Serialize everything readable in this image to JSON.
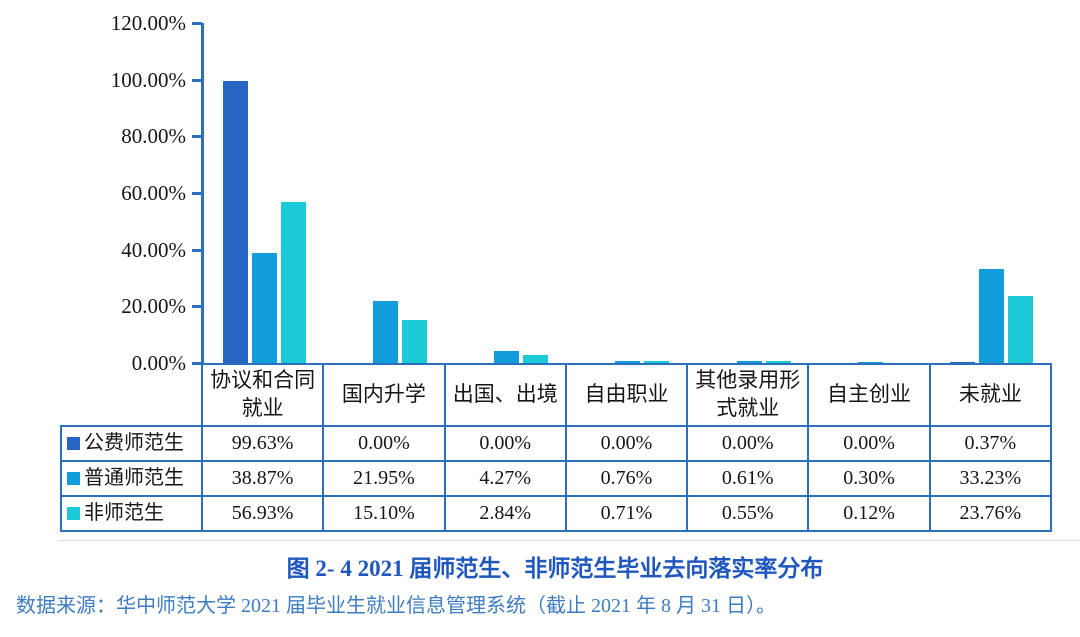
{
  "chart_data": {
    "type": "bar",
    "title": "图 2- 4  2021 届师范生、非师范生毕业去向落实率分布",
    "categories": [
      "协议和合同就业",
      "国内升学",
      "出国、出境",
      "自由职业",
      "其他录用形式就业",
      "自主创业",
      "未就业"
    ],
    "series": [
      {
        "name": "公费师范生",
        "color": "#2765C3",
        "values": [
          99.63,
          0.0,
          0.0,
          0.0,
          0.0,
          0.0,
          0.37
        ]
      },
      {
        "name": "普通师范生",
        "color": "#119CDC",
        "values": [
          38.87,
          21.95,
          4.27,
          0.76,
          0.61,
          0.3,
          33.23
        ]
      },
      {
        "name": "非师范生",
        "color": "#1BCAD6",
        "values": [
          56.93,
          15.1,
          2.84,
          0.71,
          0.55,
          0.12,
          23.76
        ]
      }
    ],
    "ylim": [
      0,
      120
    ],
    "yticks": [
      "120.00%",
      "100.00%",
      "80.00%",
      "60.00%",
      "40.00%",
      "20.00%",
      "0.00%"
    ],
    "grid": false,
    "legend_position": "table row labels",
    "axis_color": "#2B6FBE"
  },
  "table": {
    "rows": [
      {
        "label": "公费师范生",
        "values": [
          "99.63%",
          "0.00%",
          "0.00%",
          "0.00%",
          "0.00%",
          "0.00%",
          "0.37%"
        ]
      },
      {
        "label": "普通师范生",
        "values": [
          "38.87%",
          "21.95%",
          "4.27%",
          "0.76%",
          "0.61%",
          "0.30%",
          "33.23%"
        ]
      },
      {
        "label": "非师范生",
        "values": [
          "56.93%",
          "15.10%",
          "2.84%",
          "0.71%",
          "0.55%",
          "0.12%",
          "23.76%"
        ]
      }
    ]
  },
  "source_note": "数据来源：华中师范大学 2021 届毕业生就业信息管理系统（截止 2021 年 8 月 31 日）。",
  "colors": {
    "border_blue": "#2B6FBE",
    "caption_blue": "#2057BE",
    "source_blue": "#3E7CC2"
  }
}
